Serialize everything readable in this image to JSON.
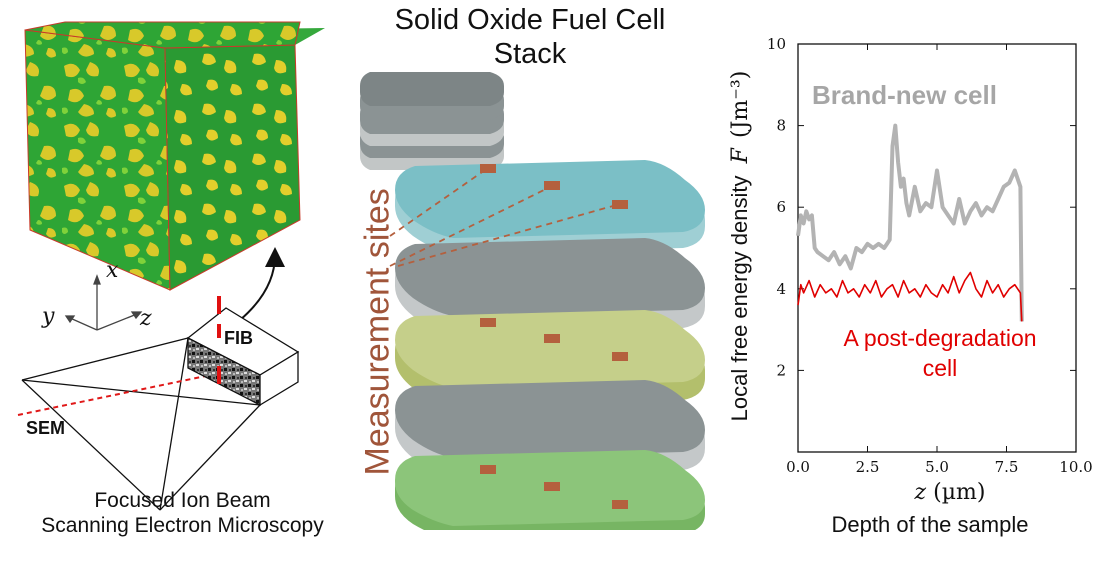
{
  "stack": {
    "title_line1": "Solid Oxide Fuel Cell",
    "title_line2": "Stack",
    "measurement_label": "Measurement sites"
  },
  "fibsem": {
    "fib_label": "FIB",
    "sem_label": "SEM",
    "axis_x": "x",
    "axis_y": "y",
    "axis_z": "z",
    "caption_line1": "Focused Ion Beam",
    "caption_line2": "Scanning Electron Microscopy"
  },
  "colors": {
    "layer_gray": "#8b9394",
    "layer_blue": "#7bbfc6",
    "layer_olive": "#c5cf8a",
    "layer_green": "#8cc57a",
    "site": "#b4603e",
    "measurement_text": "#a0553a",
    "series_new": "#b3b3b3",
    "series_degraded": "#e00000"
  },
  "chart_data": {
    "type": "line",
    "title": "",
    "xlabel_symbol": "z",
    "xlabel_unit": "(µm)",
    "xlabel_caption": "Depth of the sample",
    "ylabel_text": "Local free energy density",
    "ylabel_symbol": "F",
    "ylabel_unit": "(Jm⁻³)",
    "xlim": [
      0,
      10
    ],
    "ylim": [
      0,
      10
    ],
    "xticks": [
      "0.0",
      "2.5",
      "5.0",
      "7.5",
      "10.0"
    ],
    "yticks": [
      "2",
      "4",
      "6",
      "8",
      "10"
    ],
    "series": [
      {
        "name": "Brand-new cell",
        "x": [
          0,
          0.1,
          0.2,
          0.3,
          0.4,
          0.5,
          0.6,
          0.7,
          0.9,
          1.1,
          1.3,
          1.5,
          1.7,
          1.9,
          2.1,
          2.3,
          2.5,
          2.7,
          2.9,
          3.1,
          3.3,
          3.4,
          3.5,
          3.6,
          3.7,
          3.8,
          3.9,
          4.0,
          4.2,
          4.4,
          4.6,
          4.8,
          5.0,
          5.2,
          5.4,
          5.6,
          5.8,
          6.0,
          6.2,
          6.4,
          6.6,
          6.8,
          7.0,
          7.2,
          7.4,
          7.6,
          7.8,
          8.0,
          8.05
        ],
        "y": [
          5.3,
          5.8,
          5.6,
          5.9,
          5.7,
          5.8,
          5.0,
          4.9,
          4.8,
          4.7,
          4.9,
          4.6,
          4.8,
          4.5,
          5.0,
          4.9,
          5.1,
          5.0,
          5.1,
          5.0,
          5.2,
          7.5,
          8.0,
          7.1,
          6.5,
          6.7,
          6.1,
          5.8,
          6.5,
          5.9,
          6.1,
          6.0,
          6.9,
          6.0,
          5.8,
          5.6,
          6.2,
          5.6,
          5.9,
          6.1,
          5.8,
          6.0,
          5.9,
          6.2,
          6.5,
          6.6,
          6.9,
          6.5,
          3.2
        ]
      },
      {
        "name": "A post-degradation cell",
        "x": [
          0,
          0.1,
          0.2,
          0.4,
          0.6,
          0.8,
          1.0,
          1.2,
          1.4,
          1.6,
          1.8,
          2.0,
          2.2,
          2.4,
          2.6,
          2.8,
          3.0,
          3.2,
          3.4,
          3.6,
          3.8,
          4.0,
          4.2,
          4.4,
          4.6,
          4.8,
          5.0,
          5.2,
          5.4,
          5.6,
          5.8,
          6.0,
          6.2,
          6.4,
          6.6,
          6.8,
          7.0,
          7.2,
          7.4,
          7.6,
          7.8,
          8.0,
          8.05
        ],
        "y": [
          3.6,
          4.1,
          3.9,
          4.2,
          3.8,
          4.1,
          3.9,
          4.0,
          3.8,
          4.2,
          3.9,
          4.0,
          3.8,
          4.1,
          3.9,
          4.2,
          3.8,
          4.0,
          4.1,
          3.8,
          4.2,
          3.9,
          4.0,
          3.8,
          4.1,
          3.9,
          3.8,
          4.1,
          3.9,
          4.3,
          3.9,
          4.2,
          4.4,
          4.0,
          3.8,
          4.2,
          3.9,
          4.1,
          3.8,
          4.0,
          4.1,
          3.9,
          3.2
        ]
      }
    ]
  }
}
